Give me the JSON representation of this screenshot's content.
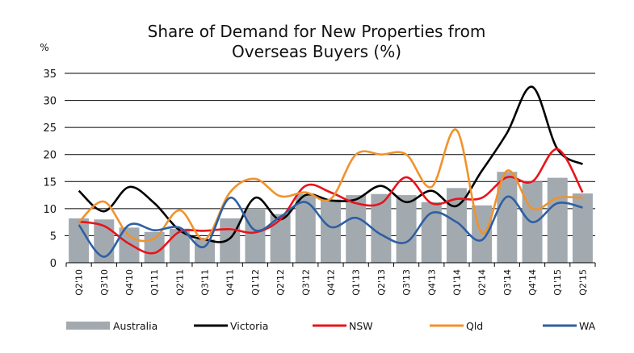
{
  "chart_data": {
    "type": "bar+line",
    "title": "Share of Demand for New Properties from Overseas Buyers (%)",
    "title_lines": [
      "Share of Demand for New Properties from",
      "Overseas Buyers (%)"
    ],
    "ylabel": "%",
    "ylim": [
      0,
      35
    ],
    "yticks": [
      0,
      5,
      10,
      15,
      20,
      25,
      30,
      35
    ],
    "grid": true,
    "legend": "bottom",
    "categories": [
      "Q2'10",
      "Q3'10",
      "Q4'10",
      "Q1'11",
      "Q2'11",
      "Q3'11",
      "Q4'11",
      "Q1'12",
      "Q2'12",
      "Q3'12",
      "Q4'12",
      "Q1'13",
      "Q2'13",
      "Q3'13",
      "Q4'13",
      "Q1'14",
      "Q2'14",
      "Q3'14",
      "Q4'14",
      "Q1'15",
      "Q2'15"
    ],
    "series": [
      {
        "name": "Australia",
        "kind": "bar",
        "color": "#a2aab0",
        "values": [
          8.2,
          8.0,
          6.5,
          5.7,
          6.3,
          4.3,
          8.2,
          10.0,
          9.0,
          12.7,
          11.7,
          12.5,
          12.7,
          12.5,
          11.2,
          13.8,
          10.6,
          16.8,
          15.0,
          15.7,
          12.8
        ]
      },
      {
        "name": "Victoria",
        "kind": "line",
        "color": "#000000",
        "values": [
          13.3,
          9.5,
          14.0,
          11.0,
          6.0,
          4.3,
          4.5,
          12.0,
          8.0,
          12.5,
          11.5,
          11.7,
          14.2,
          11.2,
          13.3,
          10.5,
          17.0,
          24.0,
          32.5,
          21.0,
          18.2
        ]
      },
      {
        "name": "NSW",
        "kind": "line",
        "color": "#e8141b",
        "values": [
          7.6,
          6.8,
          3.5,
          1.8,
          5.7,
          5.9,
          6.2,
          5.6,
          8.0,
          14.2,
          13.0,
          11.0,
          11.0,
          15.8,
          11.0,
          11.8,
          12.0,
          15.8,
          15.0,
          21.0,
          13.0
        ]
      },
      {
        "name": "Qld",
        "kind": "line",
        "color": "#f0922e",
        "values": [
          7.5,
          11.3,
          5.0,
          4.5,
          9.7,
          4.3,
          13.0,
          15.5,
          12.3,
          13.0,
          11.8,
          20.0,
          20.0,
          20.0,
          14.0,
          24.5,
          5.5,
          17.0,
          10.0,
          12.0,
          12.0
        ]
      },
      {
        "name": "WA",
        "kind": "line",
        "color": "#2e5fa3",
        "values": [
          7.0,
          1.1,
          7.0,
          6.0,
          6.5,
          3.0,
          12.0,
          6.0,
          8.5,
          11.2,
          6.6,
          8.3,
          5.2,
          3.8,
          9.2,
          7.5,
          4.2,
          12.2,
          7.5,
          11.0,
          10.2
        ]
      }
    ]
  }
}
